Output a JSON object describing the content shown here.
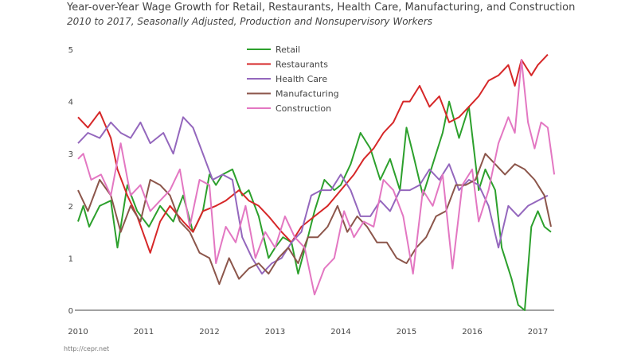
{
  "chart_data": {
    "type": "line",
    "title": "Year-over-Year Wage Growth for Retail, Restaurants, Health Care, Manufacturing, and Construction",
    "subtitle": "2010 to 2017, Seasonally Adjusted, Production and Nonsupervisory Workers",
    "xlabel": "",
    "ylabel": "",
    "xlim": [
      2010,
      2017.2
    ],
    "ylim": [
      0,
      5
    ],
    "x_ticks": [
      "2010",
      "2011",
      "2012",
      "2013",
      "2014",
      "2015",
      "2016",
      "2017"
    ],
    "y_ticks": [
      "0",
      "1",
      "2",
      "3",
      "4",
      "5"
    ],
    "grid": false,
    "legend_position": "top-center",
    "colors": {
      "Retail": "#2ca02c",
      "Restaurants": "#d62728",
      "Health Care": "#9467bd",
      "Manufacturing": "#8c564b",
      "Construction": "#e377c2"
    },
    "series": [
      {
        "name": "Retail",
        "points": [
          [
            2010,
            1.7
          ],
          [
            2010.08,
            2.0
          ],
          [
            2010.17,
            1.6
          ],
          [
            2010.33,
            2.0
          ],
          [
            2010.5,
            2.1
          ],
          [
            2010.6,
            1.2
          ],
          [
            2010.75,
            2.4
          ],
          [
            2010.9,
            1.9
          ],
          [
            2011.08,
            1.6
          ],
          [
            2011.25,
            2.0
          ],
          [
            2011.45,
            1.7
          ],
          [
            2011.6,
            2.2
          ],
          [
            2011.75,
            1.5
          ],
          [
            2011.9,
            1.9
          ],
          [
            2012,
            2.6
          ],
          [
            2012.1,
            2.4
          ],
          [
            2012.2,
            2.6
          ],
          [
            2012.35,
            2.7
          ],
          [
            2012.5,
            2.2
          ],
          [
            2012.6,
            2.3
          ],
          [
            2012.75,
            1.8
          ],
          [
            2012.9,
            1.0
          ],
          [
            2013,
            1.2
          ],
          [
            2013.12,
            1.4
          ],
          [
            2013.25,
            1.3
          ],
          [
            2013.35,
            0.7
          ],
          [
            2013.5,
            1.4
          ],
          [
            2013.6,
            1.9
          ],
          [
            2013.75,
            2.5
          ],
          [
            2013.9,
            2.3
          ],
          [
            2014,
            2.4
          ],
          [
            2014.15,
            2.8
          ],
          [
            2014.3,
            3.4
          ],
          [
            2014.45,
            3.1
          ],
          [
            2014.6,
            2.5
          ],
          [
            2014.75,
            2.9
          ],
          [
            2014.9,
            2.3
          ],
          [
            2015,
            3.5
          ],
          [
            2015.1,
            3.0
          ],
          [
            2015.25,
            2.2
          ],
          [
            2015.4,
            2.8
          ],
          [
            2015.55,
            3.4
          ],
          [
            2015.65,
            4.0
          ],
          [
            2015.8,
            3.3
          ],
          [
            2015.95,
            3.9
          ],
          [
            2016.1,
            2.3
          ],
          [
            2016.2,
            2.7
          ],
          [
            2016.35,
            2.3
          ],
          [
            2016.45,
            1.2
          ],
          [
            2016.6,
            0.6
          ],
          [
            2016.7,
            0.1
          ],
          [
            2016.8,
            0.0
          ],
          [
            2016.9,
            1.6
          ],
          [
            2017,
            1.9
          ],
          [
            2017.1,
            1.6
          ],
          [
            2017.2,
            1.5
          ]
        ]
      },
      {
        "name": "Restaurants",
        "points": [
          [
            2010,
            3.7
          ],
          [
            2010.15,
            3.5
          ],
          [
            2010.33,
            3.8
          ],
          [
            2010.5,
            3.3
          ],
          [
            2010.6,
            2.7
          ],
          [
            2010.75,
            2.2
          ],
          [
            2010.9,
            1.8
          ],
          [
            2011.1,
            1.1
          ],
          [
            2011.25,
            1.7
          ],
          [
            2011.4,
            2.0
          ],
          [
            2011.6,
            1.7
          ],
          [
            2011.75,
            1.5
          ],
          [
            2011.9,
            1.9
          ],
          [
            2012.1,
            2.0
          ],
          [
            2012.25,
            2.1
          ],
          [
            2012.45,
            2.3
          ],
          [
            2012.6,
            2.1
          ],
          [
            2012.75,
            2.0
          ],
          [
            2012.9,
            1.8
          ],
          [
            2013.1,
            1.5
          ],
          [
            2013.25,
            1.3
          ],
          [
            2013.4,
            1.6
          ],
          [
            2013.6,
            1.8
          ],
          [
            2013.8,
            2.0
          ],
          [
            2014,
            2.3
          ],
          [
            2014.2,
            2.6
          ],
          [
            2014.35,
            2.9
          ],
          [
            2014.5,
            3.1
          ],
          [
            2014.65,
            3.4
          ],
          [
            2014.8,
            3.6
          ],
          [
            2014.95,
            4.0
          ],
          [
            2015.05,
            4.0
          ],
          [
            2015.2,
            4.3
          ],
          [
            2015.35,
            3.9
          ],
          [
            2015.5,
            4.1
          ],
          [
            2015.65,
            3.6
          ],
          [
            2015.8,
            3.7
          ],
          [
            2015.95,
            3.9
          ],
          [
            2016.1,
            4.1
          ],
          [
            2016.25,
            4.4
          ],
          [
            2016.4,
            4.5
          ],
          [
            2016.55,
            4.7
          ],
          [
            2016.65,
            4.3
          ],
          [
            2016.75,
            4.8
          ],
          [
            2016.9,
            4.5
          ],
          [
            2017,
            4.7
          ],
          [
            2017.15,
            4.9
          ]
        ]
      },
      {
        "name": "Health Care",
        "points": [
          [
            2010,
            3.2
          ],
          [
            2010.15,
            3.4
          ],
          [
            2010.33,
            3.3
          ],
          [
            2010.5,
            3.6
          ],
          [
            2010.65,
            3.4
          ],
          [
            2010.8,
            3.3
          ],
          [
            2010.95,
            3.6
          ],
          [
            2011.1,
            3.2
          ],
          [
            2011.3,
            3.4
          ],
          [
            2011.45,
            3.0
          ],
          [
            2011.6,
            3.7
          ],
          [
            2011.75,
            3.5
          ],
          [
            2011.9,
            3.0
          ],
          [
            2012.05,
            2.5
          ],
          [
            2012.2,
            2.6
          ],
          [
            2012.35,
            2.5
          ],
          [
            2012.5,
            1.4
          ],
          [
            2012.65,
            1.0
          ],
          [
            2012.8,
            0.7
          ],
          [
            2012.95,
            0.9
          ],
          [
            2013.1,
            1.0
          ],
          [
            2013.25,
            1.3
          ],
          [
            2013.4,
            1.5
          ],
          [
            2013.55,
            2.2
          ],
          [
            2013.7,
            2.3
          ],
          [
            2013.85,
            2.3
          ],
          [
            2014,
            2.6
          ],
          [
            2014.15,
            2.3
          ],
          [
            2014.3,
            1.8
          ],
          [
            2014.45,
            1.8
          ],
          [
            2014.6,
            2.1
          ],
          [
            2014.75,
            1.9
          ],
          [
            2014.9,
            2.3
          ],
          [
            2015.05,
            2.3
          ],
          [
            2015.2,
            2.4
          ],
          [
            2015.35,
            2.7
          ],
          [
            2015.5,
            2.5
          ],
          [
            2015.65,
            2.8
          ],
          [
            2015.8,
            2.3
          ],
          [
            2015.95,
            2.5
          ],
          [
            2016.1,
            2.4
          ],
          [
            2016.25,
            2.0
          ],
          [
            2016.4,
            1.2
          ],
          [
            2016.55,
            2.0
          ],
          [
            2016.7,
            1.8
          ],
          [
            2016.85,
            2.0
          ],
          [
            2017,
            2.1
          ],
          [
            2017.15,
            2.2
          ]
        ]
      },
      {
        "name": "Manufacturing",
        "points": [
          [
            2010,
            2.3
          ],
          [
            2010.15,
            1.9
          ],
          [
            2010.33,
            2.5
          ],
          [
            2010.5,
            2.2
          ],
          [
            2010.65,
            1.5
          ],
          [
            2010.8,
            2.0
          ],
          [
            2010.95,
            1.7
          ],
          [
            2011.1,
            2.5
          ],
          [
            2011.25,
            2.4
          ],
          [
            2011.4,
            2.2
          ],
          [
            2011.55,
            1.7
          ],
          [
            2011.7,
            1.5
          ],
          [
            2011.85,
            1.1
          ],
          [
            2012,
            1.0
          ],
          [
            2012.15,
            0.5
          ],
          [
            2012.3,
            1.0
          ],
          [
            2012.45,
            0.6
          ],
          [
            2012.6,
            0.8
          ],
          [
            2012.75,
            0.9
          ],
          [
            2012.9,
            0.7
          ],
          [
            2013.05,
            1.0
          ],
          [
            2013.2,
            1.2
          ],
          [
            2013.35,
            0.9
          ],
          [
            2013.5,
            1.4
          ],
          [
            2013.65,
            1.4
          ],
          [
            2013.8,
            1.6
          ],
          [
            2013.95,
            2.0
          ],
          [
            2014.1,
            1.5
          ],
          [
            2014.25,
            1.8
          ],
          [
            2014.4,
            1.6
          ],
          [
            2014.55,
            1.3
          ],
          [
            2014.7,
            1.3
          ],
          [
            2014.85,
            1.0
          ],
          [
            2015,
            0.9
          ],
          [
            2015.15,
            1.2
          ],
          [
            2015.3,
            1.4
          ],
          [
            2015.45,
            1.8
          ],
          [
            2015.6,
            1.9
          ],
          [
            2015.75,
            2.4
          ],
          [
            2015.9,
            2.4
          ],
          [
            2016.05,
            2.5
          ],
          [
            2016.2,
            3.0
          ],
          [
            2016.35,
            2.8
          ],
          [
            2016.5,
            2.6
          ],
          [
            2016.65,
            2.8
          ],
          [
            2016.8,
            2.7
          ],
          [
            2016.95,
            2.5
          ],
          [
            2017.1,
            2.2
          ],
          [
            2017.2,
            1.6
          ]
        ]
      },
      {
        "name": "Construction",
        "points": [
          [
            2010,
            2.9
          ],
          [
            2010.08,
            3.0
          ],
          [
            2010.2,
            2.5
          ],
          [
            2010.35,
            2.6
          ],
          [
            2010.5,
            2.2
          ],
          [
            2010.65,
            3.2
          ],
          [
            2010.8,
            2.2
          ],
          [
            2010.95,
            2.4
          ],
          [
            2011.1,
            1.9
          ],
          [
            2011.25,
            2.1
          ],
          [
            2011.4,
            2.3
          ],
          [
            2011.55,
            2.7
          ],
          [
            2011.7,
            1.6
          ],
          [
            2011.85,
            2.5
          ],
          [
            2012,
            2.4
          ],
          [
            2012.1,
            0.9
          ],
          [
            2012.25,
            1.6
          ],
          [
            2012.4,
            1.3
          ],
          [
            2012.55,
            2.0
          ],
          [
            2012.7,
            1.0
          ],
          [
            2012.85,
            1.5
          ],
          [
            2013,
            1.2
          ],
          [
            2013.15,
            1.8
          ],
          [
            2013.3,
            1.4
          ],
          [
            2013.45,
            1.2
          ],
          [
            2013.6,
            0.3
          ],
          [
            2013.75,
            0.8
          ],
          [
            2013.9,
            1.0
          ],
          [
            2014.05,
            1.9
          ],
          [
            2014.2,
            1.4
          ],
          [
            2014.35,
            1.7
          ],
          [
            2014.5,
            1.6
          ],
          [
            2014.65,
            2.5
          ],
          [
            2014.8,
            2.3
          ],
          [
            2014.95,
            1.8
          ],
          [
            2015.1,
            0.7
          ],
          [
            2015.25,
            2.3
          ],
          [
            2015.4,
            2.0
          ],
          [
            2015.55,
            2.6
          ],
          [
            2015.7,
            0.8
          ],
          [
            2015.85,
            2.4
          ],
          [
            2016,
            2.7
          ],
          [
            2016.1,
            1.7
          ],
          [
            2016.25,
            2.3
          ],
          [
            2016.4,
            3.2
          ],
          [
            2016.55,
            3.7
          ],
          [
            2016.65,
            3.4
          ],
          [
            2016.75,
            4.8
          ],
          [
            2016.85,
            3.6
          ],
          [
            2016.95,
            3.1
          ],
          [
            2017.05,
            3.6
          ],
          [
            2017.15,
            3.5
          ],
          [
            2017.25,
            2.6
          ]
        ]
      }
    ]
  },
  "footer": {
    "source": "http://cepr.net"
  }
}
